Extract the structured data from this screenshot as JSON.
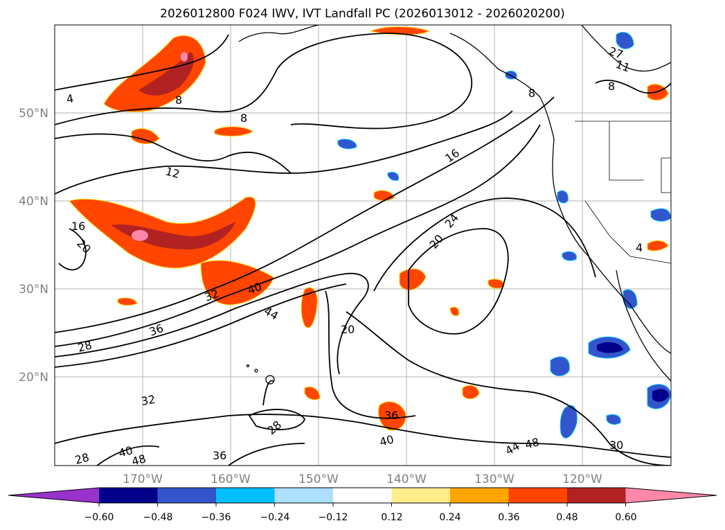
{
  "title": "2026012800 F024 IWV, IVT Landfall PC (2026013012 - 2026020200)",
  "map": {
    "lat_labels": [
      "50°N",
      "40°N",
      "30°N",
      "20°N"
    ],
    "lon_labels": [
      "170°W",
      "160°W",
      "150°W",
      "140°W",
      "130°W",
      "120°W"
    ],
    "contour_labels": [
      "4",
      "8",
      "8",
      "12",
      "16",
      "20",
      "16",
      "20",
      "24",
      "20",
      "28",
      "32",
      "36",
      "40",
      "44",
      "36",
      "32",
      "28",
      "40",
      "48",
      "28",
      "36",
      "40",
      "44",
      "48",
      "30",
      "4",
      "8",
      "27",
      "11",
      "8"
    ],
    "colors": {
      "land_outline": "#000000",
      "grid": "#b0b0b0",
      "positive_fill": [
        "#ffee88",
        "#ff9900",
        "#ff4500",
        "#b22222",
        "#ff88aa"
      ],
      "negative_fill": [
        "#aaddff",
        "#00bbff",
        "#3355cc",
        "#000088",
        "#9933cc"
      ]
    }
  },
  "colorbar": {
    "ticks": [
      "−0.60",
      "−0.48",
      "−0.36",
      "−0.24",
      "−0.12",
      "0.12",
      "0.24",
      "0.36",
      "0.48",
      "0.60"
    ],
    "segment_colors": [
      "#9932CC",
      "#00008B",
      "#3355CC",
      "#00BFFF",
      "#ADE0FF",
      "#FFFFFF",
      "#FFEC8B",
      "#FFA500",
      "#FF4500",
      "#B22222",
      "#FF88AA"
    ]
  }
}
